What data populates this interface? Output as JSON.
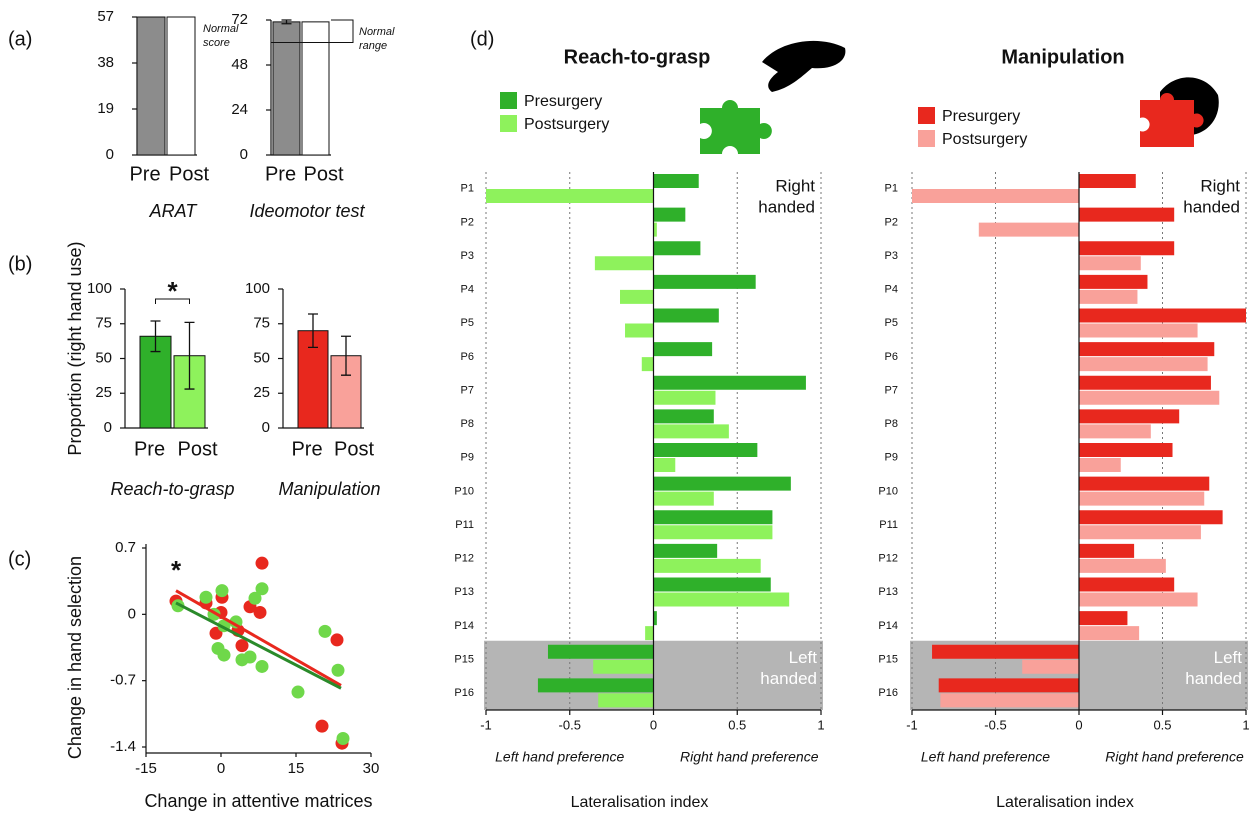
{
  "chart_data": [
    {
      "type": "bar",
      "panel_label": "(a)",
      "xlabel": "ARAT",
      "categories": [
        "Pre",
        "Post"
      ],
      "values": [
        57,
        57
      ],
      "colors": [
        "#8c8c8c",
        "#ffffff"
      ],
      "ylim": [
        0,
        57
      ],
      "yticks": [
        0,
        19,
        38,
        57
      ],
      "annotation": [
        "Normal",
        "score"
      ]
    },
    {
      "type": "bar",
      "xlabel": "Ideomotor test",
      "categories": [
        "Pre",
        "Post"
      ],
      "values": [
        71,
        71
      ],
      "errors": [
        1,
        null
      ],
      "colors": [
        "#8c8c8c",
        "#ffffff"
      ],
      "ylim": [
        0,
        72
      ],
      "yticks": [
        0,
        24,
        48,
        72
      ],
      "annotation": [
        "Normal",
        "range"
      ],
      "normal_range": [
        60,
        72
      ]
    },
    {
      "type": "bar",
      "panel_label": "(b)",
      "ylabel": "Proportion (right hand use)",
      "xlabel": "Reach-to-grasp",
      "categories": [
        "Pre",
        "Post"
      ],
      "values": [
        66,
        52
      ],
      "errors": [
        11,
        24
      ],
      "colors": [
        "#2fb02a",
        "#8ef25c"
      ],
      "ylim": [
        0,
        100
      ],
      "yticks": [
        0,
        25,
        50,
        75,
        100
      ],
      "significance": "*"
    },
    {
      "type": "bar",
      "xlabel": "Manipulation",
      "categories": [
        "Pre",
        "Post"
      ],
      "values": [
        70,
        52
      ],
      "errors": [
        12,
        14
      ],
      "colors": [
        "#e8281e",
        "#f9a19a"
      ],
      "ylim": [
        0,
        100
      ],
      "yticks": [
        0,
        25,
        50,
        75,
        100
      ]
    },
    {
      "type": "scatter",
      "panel_label": "(c)",
      "xlabel": "Change in attentive matrices",
      "ylabel": "Change in hand selection",
      "xlim": [
        -15,
        30
      ],
      "xticks": [
        -15,
        0,
        15,
        30
      ],
      "ylim": [
        -1.4,
        0.7
      ],
      "yticks": [
        -1.4,
        -0.7,
        0,
        0.7
      ],
      "significance": "*",
      "series": [
        {
          "color": "#e8281e",
          "x": [
            -9,
            -3,
            -1,
            0.2,
            0,
            3.4,
            4.2,
            5.8,
            7.8,
            8.2,
            20.2,
            23.2,
            24.2
          ],
          "y": [
            0.14,
            0.12,
            -0.2,
            0.18,
            0.02,
            -0.17,
            -0.33,
            0.08,
            0.02,
            0.54,
            -1.18,
            -0.27,
            -1.36
          ],
          "fit": {
            "x": [
              -9,
              24
            ],
            "y": [
              0.25,
              -0.75
            ]
          }
        },
        {
          "color": "#6fd84a",
          "x": [
            -8.6,
            -3,
            -1.4,
            -0.6,
            0.2,
            0.6,
            0.6,
            3,
            4.2,
            5.8,
            6.8,
            8.2,
            8.2,
            15.4,
            20.8,
            23.4,
            24.4
          ],
          "y": [
            0.09,
            0.18,
            0,
            -0.36,
            0.25,
            -0.12,
            -0.43,
            -0.08,
            -0.48,
            -0.45,
            0.17,
            0.27,
            -0.55,
            -0.82,
            -0.18,
            -0.59,
            -1.31
          ],
          "fit": {
            "x": [
              -9,
              24
            ],
            "y": [
              0.12,
              -0.78
            ],
            "color": "#2a8a2a"
          }
        }
      ]
    },
    {
      "type": "hbar",
      "panel_label": "(d)",
      "title": "Reach-to-grasp",
      "xlabel": "Lateralisation index",
      "left_label": "Left hand preference",
      "right_label": "Right hand preference",
      "right_handed": [
        "Right",
        "handed"
      ],
      "left_handed": [
        "Left",
        "handed"
      ],
      "categories": [
        "P1",
        "P2",
        "P3",
        "P4",
        "P5",
        "P6",
        "P7",
        "P8",
        "P9",
        "P10",
        "P11",
        "P12",
        "P13",
        "P14",
        "P15",
        "P16"
      ],
      "series": [
        {
          "name": "Presurgery",
          "color": "#2fb02a",
          "values": [
            0.27,
            0.19,
            0.28,
            0.61,
            0.39,
            0.35,
            0.91,
            0.36,
            0.62,
            0.82,
            0.71,
            0.38,
            0.7,
            0.02,
            -0.63,
            -0.69
          ]
        },
        {
          "name": "Postsurgery",
          "color": "#8ef25c",
          "values": [
            -1.0,
            0.02,
            -0.35,
            -0.2,
            -0.17,
            -0.07,
            0.37,
            0.45,
            0.13,
            0.36,
            0.71,
            0.64,
            0.81,
            -0.05,
            -0.36,
            -0.33
          ]
        }
      ],
      "xlim": [
        -1,
        1
      ],
      "xticks": [
        -1,
        -0.5,
        0,
        0.5,
        1
      ],
      "grid": true
    },
    {
      "type": "hbar",
      "title": "Manipulation",
      "xlabel": "Lateralisation index",
      "left_label": "Left hand preference",
      "right_label": "Right hand preference",
      "right_handed": [
        "Right",
        "handed"
      ],
      "left_handed": [
        "Left",
        "handed"
      ],
      "categories": [
        "P1",
        "P2",
        "P3",
        "P4",
        "P5",
        "P6",
        "P7",
        "P8",
        "P9",
        "P10",
        "P11",
        "P12",
        "P13",
        "P14",
        "P15",
        "P16"
      ],
      "series": [
        {
          "name": "Presurgery",
          "color": "#e8281e",
          "values": [
            0.34,
            0.57,
            0.57,
            0.41,
            1.0,
            0.81,
            0.79,
            0.6,
            0.56,
            0.78,
            0.86,
            0.33,
            0.57,
            0.29,
            -0.88,
            -0.84
          ]
        },
        {
          "name": "Postsurgery",
          "color": "#f9a19a",
          "values": [
            -1.0,
            -0.6,
            0.37,
            0.35,
            0.71,
            0.77,
            0.84,
            0.43,
            0.25,
            0.75,
            0.73,
            0.52,
            0.71,
            0.36,
            -0.34,
            -0.83
          ]
        }
      ],
      "xlim": [
        -1,
        1
      ],
      "xticks": [
        -1,
        -0.5,
        0,
        0.5,
        1
      ],
      "grid": true
    }
  ]
}
